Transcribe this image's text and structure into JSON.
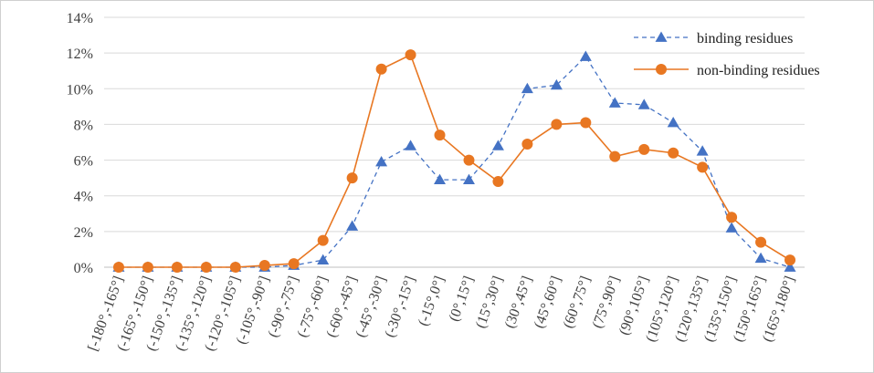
{
  "chart_data": {
    "type": "line",
    "title": "",
    "xlabel": "",
    "ylabel": "",
    "ylim": [
      0,
      14
    ],
    "yticks": [
      "0%",
      "2%",
      "4%",
      "6%",
      "8%",
      "10%",
      "12%",
      "14%"
    ],
    "grid": "horizontal",
    "legend_position": "top-right",
    "categories": [
      "[-180°,-165°]",
      "(-165°,-150°]",
      "(-150°,-135°]",
      "(-135°,-120°]",
      "(-120°,-105°]",
      "(-105°,-90°]",
      "(-90°,-75°]",
      "(-75°,-60°]",
      "(-60°,-45°]",
      "(-45°,-30°]",
      "(-30°,-15°]",
      "(-15°,0°]",
      "(0°,15°]",
      "(15°,30°]",
      "(30°,45°]",
      "(45°,60°]",
      "(60°,75°]",
      "(75°,90°]",
      "(90°,105°]",
      "(105°,120°]",
      "(120°,135°]",
      "(135°,150°]",
      "(150°,165°]",
      "(165°,180°]"
    ],
    "series": [
      {
        "name": "binding residues",
        "color": "#4472C4",
        "line_style": "dashed",
        "marker": "triangle",
        "values": [
          0,
          0,
          0,
          0,
          0,
          0,
          0.1,
          0.4,
          2.3,
          5.9,
          6.8,
          4.9,
          4.9,
          6.8,
          10.0,
          10.2,
          11.8,
          9.2,
          9.1,
          8.1,
          6.5,
          2.2,
          0.5,
          0
        ]
      },
      {
        "name": "non-binding residues",
        "color": "#E87722",
        "line_style": "solid",
        "marker": "circle",
        "values": [
          0,
          0,
          0,
          0,
          0,
          0.1,
          0.2,
          1.5,
          5.0,
          11.1,
          11.9,
          7.4,
          6.0,
          4.8,
          6.9,
          8.0,
          8.1,
          6.2,
          6.6,
          6.4,
          5.6,
          2.8,
          1.4,
          0.4
        ]
      }
    ]
  }
}
